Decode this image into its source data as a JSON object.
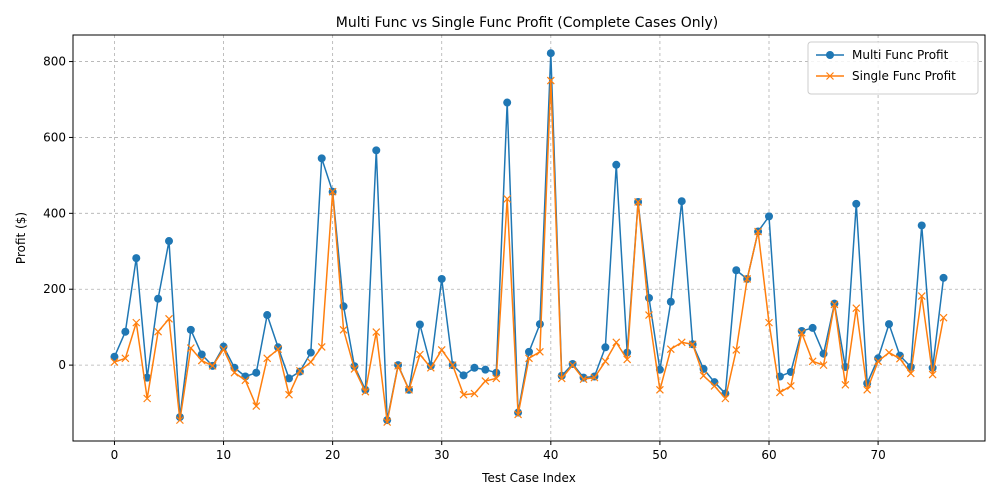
{
  "chart_data": {
    "type": "line",
    "title": "Multi Func vs Single Func Profit (Complete Cases Only)",
    "xlabel": "Test Case Index",
    "ylabel": "Profit ($)",
    "xlim": [
      -3.8,
      79.8
    ],
    "ylim": [
      -200,
      870
    ],
    "xticks": [
      0,
      10,
      20,
      30,
      40,
      50,
      60,
      70
    ],
    "yticks": [
      0,
      200,
      400,
      600,
      800
    ],
    "grid": true,
    "legend": "top-right",
    "series": [
      {
        "name": "Multi Func Profit",
        "color": "#1f77b4",
        "marker": "circle",
        "values": [
          22,
          88,
          282,
          -33,
          175,
          327,
          -137,
          93,
          28,
          -2,
          49,
          -7,
          -30,
          -20,
          132,
          47,
          -35,
          -17,
          33,
          545,
          457,
          155,
          -3,
          -65,
          566,
          -145,
          0,
          -65,
          107,
          -2,
          227,
          0,
          -27,
          -7,
          -12,
          -20,
          692,
          -125,
          35,
          108,
          822,
          -28,
          3,
          -33,
          -30,
          47,
          528,
          33,
          430,
          177,
          -12,
          167,
          432,
          55,
          -10,
          -45,
          -75,
          250,
          227,
          352,
          392,
          -30,
          -18,
          90,
          98,
          30,
          162,
          -5,
          425,
          -48,
          18,
          108,
          25,
          -5,
          368,
          -7,
          230
        ]
      },
      {
        "name": "Single Func Profit",
        "color": "#ff7f0e",
        "marker": "x",
        "values": [
          8,
          18,
          112,
          -88,
          88,
          122,
          -145,
          45,
          12,
          -2,
          42,
          -20,
          -40,
          -108,
          18,
          42,
          -78,
          -15,
          8,
          48,
          457,
          93,
          -10,
          -70,
          87,
          -150,
          -2,
          -65,
          28,
          -7,
          40,
          0,
          -78,
          -75,
          -42,
          -35,
          438,
          -130,
          18,
          35,
          750,
          -35,
          0,
          -37,
          -33,
          10,
          60,
          15,
          430,
          132,
          -65,
          42,
          60,
          55,
          -28,
          -55,
          -88,
          40,
          227,
          352,
          112,
          -72,
          -55,
          85,
          10,
          0,
          160,
          -52,
          150,
          -65,
          10,
          33,
          17,
          -22,
          182,
          -25,
          125
        ]
      }
    ]
  }
}
